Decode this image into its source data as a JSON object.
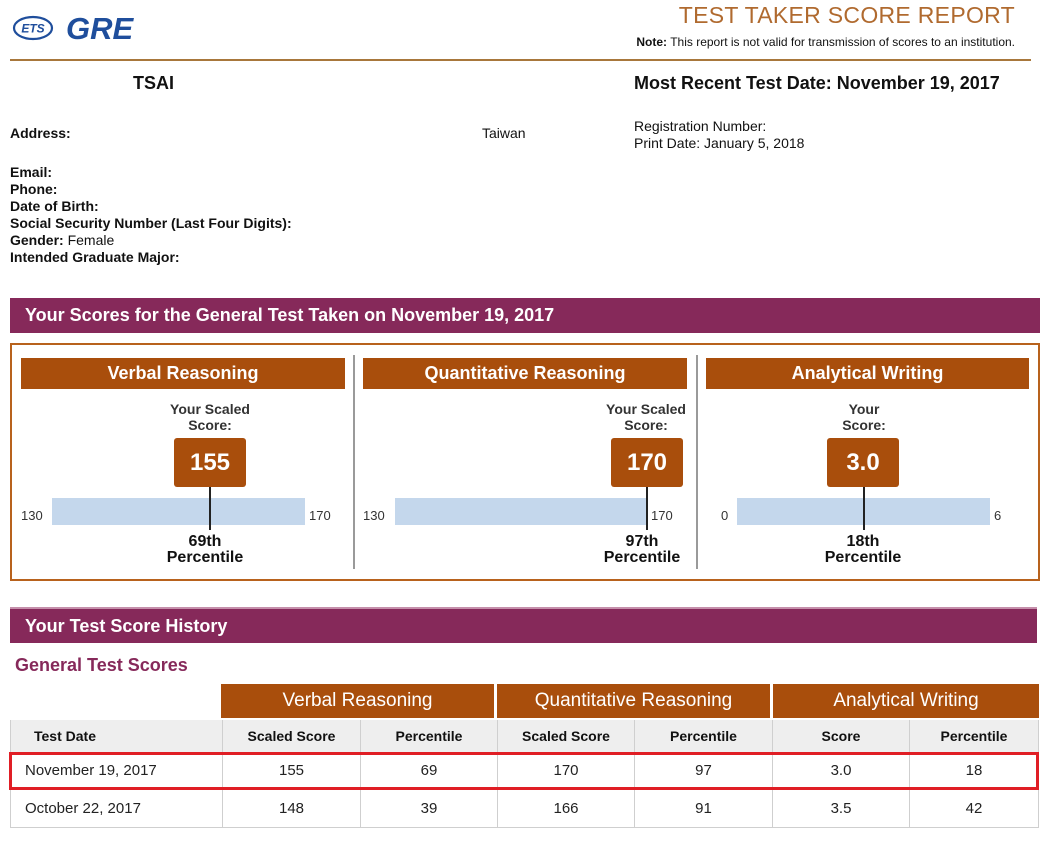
{
  "header": {
    "ets_logo_text": "ETS",
    "gre_logo_text": "GRE",
    "report_title": "TEST TAKER SCORE REPORT",
    "note_label": "Note:",
    "note_text": "This report is not valid for transmission of scores to an institution."
  },
  "candidate": {
    "name": "TSAI",
    "most_recent_test_date": "Most Recent Test Date: November 19, 2017",
    "address_label": "Address:",
    "address_country": "Taiwan",
    "registration_number_label": "Registration Number:",
    "print_date": "Print Date: January 5, 2018",
    "email_label": "Email:",
    "phone_label": "Phone:",
    "dob_label": "Date of Birth:",
    "ssn_label": "Social Security Number (Last Four Digits):",
    "gender_label": "Gender:",
    "gender_value": "Female",
    "major_label": "Intended Graduate Major:"
  },
  "scores_section": {
    "title": "Your Scores for the General Test Taken on November 19, 2017",
    "verbal": {
      "title": "Verbal Reasoning",
      "label_line1": "Your Scaled",
      "label_line2": "Score:",
      "score": "155",
      "min": "130",
      "max": "170",
      "percentile_num": "69th",
      "percentile_word": "Percentile",
      "fraction": 0.625
    },
    "quant": {
      "title": "Quantitative Reasoning",
      "label_line1": "Your Scaled",
      "label_line2": "Score:",
      "score": "170",
      "min": "130",
      "max": "170",
      "percentile_num": "97th",
      "percentile_word": "Percentile",
      "fraction": 1.0
    },
    "writing": {
      "title": "Analytical Writing",
      "label_line1": "Your",
      "label_line2": "Score:",
      "score": "3.0",
      "min": "0",
      "max": "6",
      "percentile_num": "18th",
      "percentile_word": "Percentile",
      "fraction": 0.5
    }
  },
  "history": {
    "title": "Your Test Score History",
    "subtitle": "General Test Scores",
    "group_headers": [
      "Verbal Reasoning",
      "Quantitative Reasoning",
      "Analytical Writing"
    ],
    "columns": [
      "Test Date",
      "Scaled Score",
      "Percentile",
      "Scaled Score",
      "Percentile",
      "Score",
      "Percentile"
    ],
    "rows": [
      [
        "November 19, 2017",
        "155",
        "69",
        "170",
        "97",
        "3.0",
        "18"
      ],
      [
        "October 22, 2017",
        "148",
        "39",
        "166",
        "91",
        "3.5",
        "42"
      ]
    ]
  },
  "colors": {
    "band": "#86295a",
    "section_header": "#a94e0c",
    "title_orange": "#b06a2f",
    "bar": "#c4d7ec",
    "highlight": "#e01e25"
  }
}
